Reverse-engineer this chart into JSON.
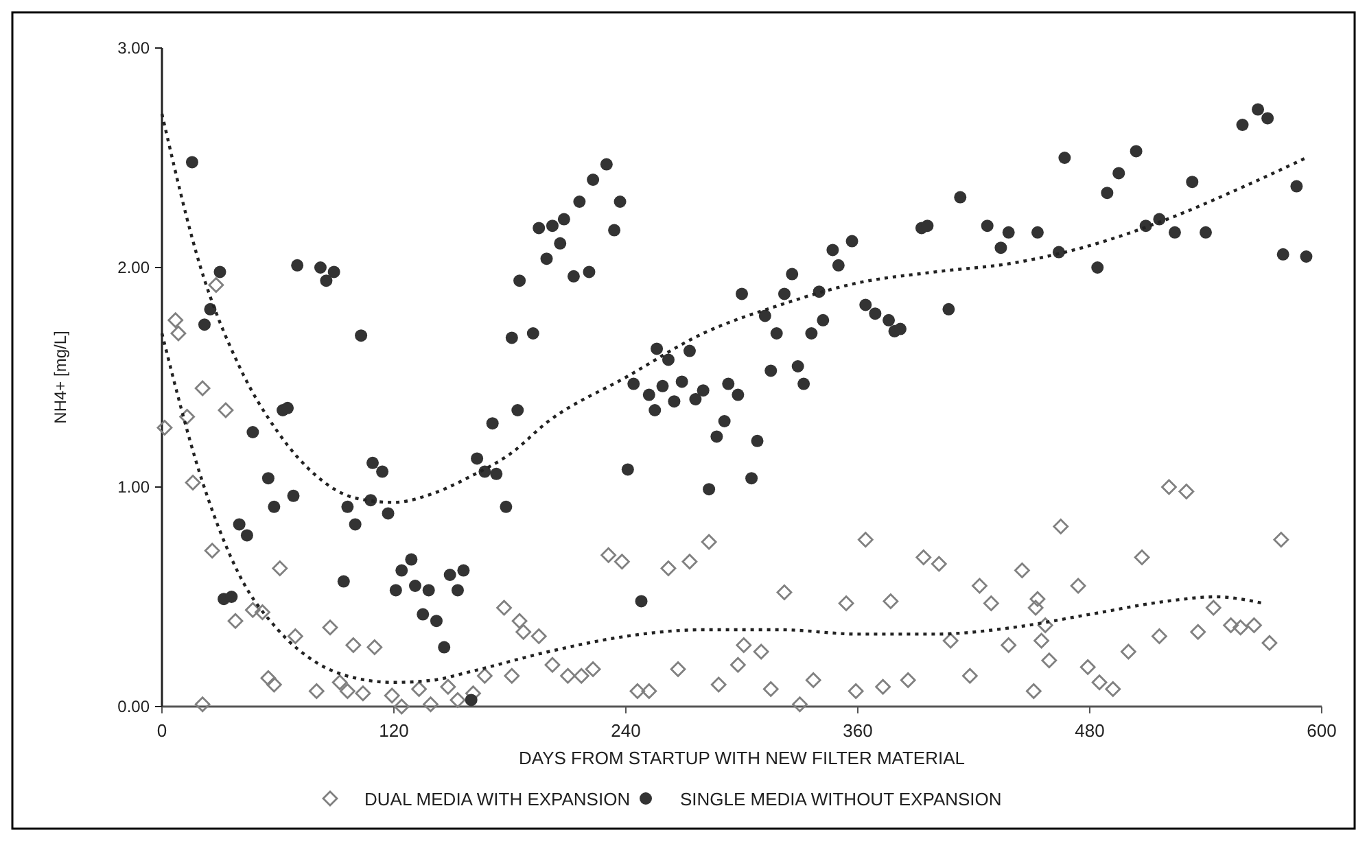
{
  "chart_data": {
    "type": "scatter",
    "xlabel": "DAYS FROM STARTUP WITH NEW FILTER MATERIAL",
    "ylabel": "NH4+ [mg/L]",
    "xlim": [
      0,
      600
    ],
    "ylim": [
      0,
      3
    ],
    "xticks": [
      0,
      120,
      240,
      360,
      480,
      600
    ],
    "yticks": [
      {
        "value": 0,
        "label": "0.00"
      },
      {
        "value": 1,
        "label": "1.00"
      },
      {
        "value": 2,
        "label": "2.00"
      },
      {
        "value": 3,
        "label": "3.00"
      }
    ],
    "grid": false,
    "legend": "bottom",
    "series": [
      {
        "name": "DUAL MEDIA WITH EXPANSION",
        "color": "#808080",
        "marker": "diamond",
        "x": [
          1.4,
          7,
          8.5,
          13,
          16,
          21,
          21,
          26,
          28,
          33,
          38,
          47,
          52,
          55,
          58,
          61,
          69,
          80,
          87,
          92,
          96,
          99,
          104,
          110,
          119,
          124,
          133,
          139,
          148,
          153,
          161,
          167,
          177,
          181,
          185,
          187,
          195,
          202,
          210,
          217,
          223,
          231,
          238,
          246,
          252,
          262,
          267,
          273,
          283,
          288,
          298,
          301,
          310,
          315,
          322,
          330,
          337,
          354,
          359,
          364,
          373,
          377,
          386,
          394,
          402,
          408,
          418,
          423,
          429,
          438,
          445,
          451,
          453,
          452,
          457,
          455,
          459,
          465,
          474,
          479,
          485,
          492,
          500,
          507,
          516,
          521,
          530,
          536,
          544,
          553,
          558,
          565,
          573,
          579
        ],
        "values": [
          1.27,
          1.76,
          1.7,
          1.32,
          1.02,
          0.01,
          1.45,
          0.71,
          1.92,
          1.35,
          0.39,
          0.44,
          0.43,
          0.13,
          0.1,
          0.63,
          0.32,
          0.07,
          0.36,
          0.11,
          0.07,
          0.28,
          0.06,
          0.27,
          0.05,
          0.0,
          0.08,
          0.01,
          0.09,
          0.03,
          0.06,
          0.14,
          0.45,
          0.14,
          0.39,
          0.34,
          0.32,
          0.19,
          0.14,
          0.14,
          0.17,
          0.69,
          0.66,
          0.07,
          0.07,
          0.63,
          0.17,
          0.66,
          0.75,
          0.1,
          0.19,
          0.28,
          0.25,
          0.08,
          0.52,
          0.01,
          0.12,
          0.47,
          0.07,
          0.76,
          0.09,
          0.48,
          0.12,
          0.68,
          0.65,
          0.3,
          0.14,
          0.55,
          0.47,
          0.28,
          0.62,
          0.07,
          0.49,
          0.45,
          0.37,
          0.3,
          0.21,
          0.82,
          0.55,
          0.18,
          0.11,
          0.08,
          0.25,
          0.68,
          0.32,
          1.0,
          0.98,
          0.34,
          0.45,
          0.37,
          0.36,
          0.37,
          0.29,
          0.76
        ]
      },
      {
        "name": "SINGLE MEDIA WITHOUT EXPANSION",
        "color": "#333333",
        "marker": "circle",
        "x": [
          15.6,
          22,
          25,
          30,
          32,
          36,
          40,
          44,
          47,
          55,
          58,
          62.5,
          65,
          68,
          70,
          82,
          85,
          89,
          94,
          96,
          100,
          103,
          108,
          109,
          114,
          117,
          121,
          124,
          129,
          131,
          135,
          138,
          142,
          146,
          149,
          153,
          156,
          160,
          163,
          167,
          171,
          173,
          178,
          181,
          184,
          185,
          192,
          195,
          199,
          202,
          206,
          208,
          213,
          216,
          221,
          223,
          230,
          234,
          237,
          241,
          244,
          248,
          252,
          255,
          256,
          259,
          262,
          265,
          269,
          273,
          276,
          280,
          283,
          287,
          291,
          293,
          298,
          300,
          305,
          308,
          312,
          315,
          318,
          322,
          326,
          329,
          332,
          336,
          340,
          342,
          347,
          350,
          357,
          364,
          369,
          376,
          379,
          382,
          393,
          396,
          407,
          413,
          427,
          434,
          438,
          453,
          464,
          467,
          484,
          489,
          495,
          504,
          509,
          516,
          524,
          533,
          540,
          559,
          567,
          572,
          580,
          587,
          592
        ],
        "values": [
          2.48,
          1.74,
          1.81,
          1.98,
          0.49,
          0.5,
          0.83,
          0.78,
          1.25,
          1.04,
          0.91,
          1.35,
          1.36,
          0.96,
          2.01,
          2.0,
          1.94,
          1.98,
          0.57,
          0.91,
          0.83,
          1.69,
          0.94,
          1.11,
          1.07,
          0.88,
          0.53,
          0.62,
          0.67,
          0.55,
          0.42,
          0.53,
          0.39,
          0.27,
          0.6,
          0.53,
          0.62,
          0.03,
          1.13,
          1.07,
          1.29,
          1.06,
          0.91,
          1.68,
          1.35,
          1.94,
          1.7,
          2.18,
          2.04,
          2.19,
          2.11,
          2.22,
          1.96,
          2.3,
          1.98,
          2.4,
          2.47,
          2.17,
          2.3,
          1.08,
          1.47,
          0.48,
          1.42,
          1.35,
          1.63,
          1.46,
          1.58,
          1.39,
          1.48,
          1.62,
          1.4,
          1.44,
          0.99,
          1.23,
          1.3,
          1.47,
          1.42,
          1.88,
          1.04,
          1.21,
          1.78,
          1.53,
          1.7,
          1.88,
          1.97,
          1.55,
          1.47,
          1.7,
          1.89,
          1.76,
          2.08,
          2.01,
          2.12,
          1.83,
          1.79,
          1.76,
          1.71,
          1.72,
          2.18,
          2.19,
          1.81,
          2.32,
          2.19,
          2.09,
          2.16,
          2.16,
          2.07,
          2.5,
          2.0,
          2.34,
          2.43,
          2.53,
          2.19,
          2.22,
          2.16,
          2.39,
          2.16,
          2.65,
          2.72,
          2.68,
          2.06,
          2.37,
          2.05
        ]
      },
      {
        "type": "line",
        "color": "#222222",
        "marker": "none",
        "line_style": "dotted",
        "x": [
          0,
          20,
          40,
          60,
          80,
          100,
          120,
          140,
          160,
          180,
          200,
          240,
          280,
          320,
          360,
          400,
          440,
          480,
          520,
          560,
          592
        ],
        "values": [
          2.7,
          2.0,
          1.55,
          1.25,
          1.05,
          0.95,
          0.93,
          0.97,
          1.05,
          1.15,
          1.3,
          1.5,
          1.7,
          1.83,
          1.93,
          1.98,
          2.02,
          2.1,
          2.22,
          2.37,
          2.5
        ]
      },
      {
        "type": "line",
        "color": "#222222",
        "marker": "none",
        "line_style": "dotted",
        "x": [
          0,
          20,
          40,
          60,
          80,
          100,
          120,
          140,
          160,
          200,
          240,
          280,
          320,
          360,
          400,
          440,
          480,
          520,
          545,
          570
        ],
        "values": [
          1.7,
          1.05,
          0.6,
          0.35,
          0.2,
          0.13,
          0.11,
          0.12,
          0.16,
          0.25,
          0.32,
          0.35,
          0.35,
          0.33,
          0.33,
          0.36,
          0.42,
          0.48,
          0.5,
          0.47
        ]
      }
    ]
  }
}
